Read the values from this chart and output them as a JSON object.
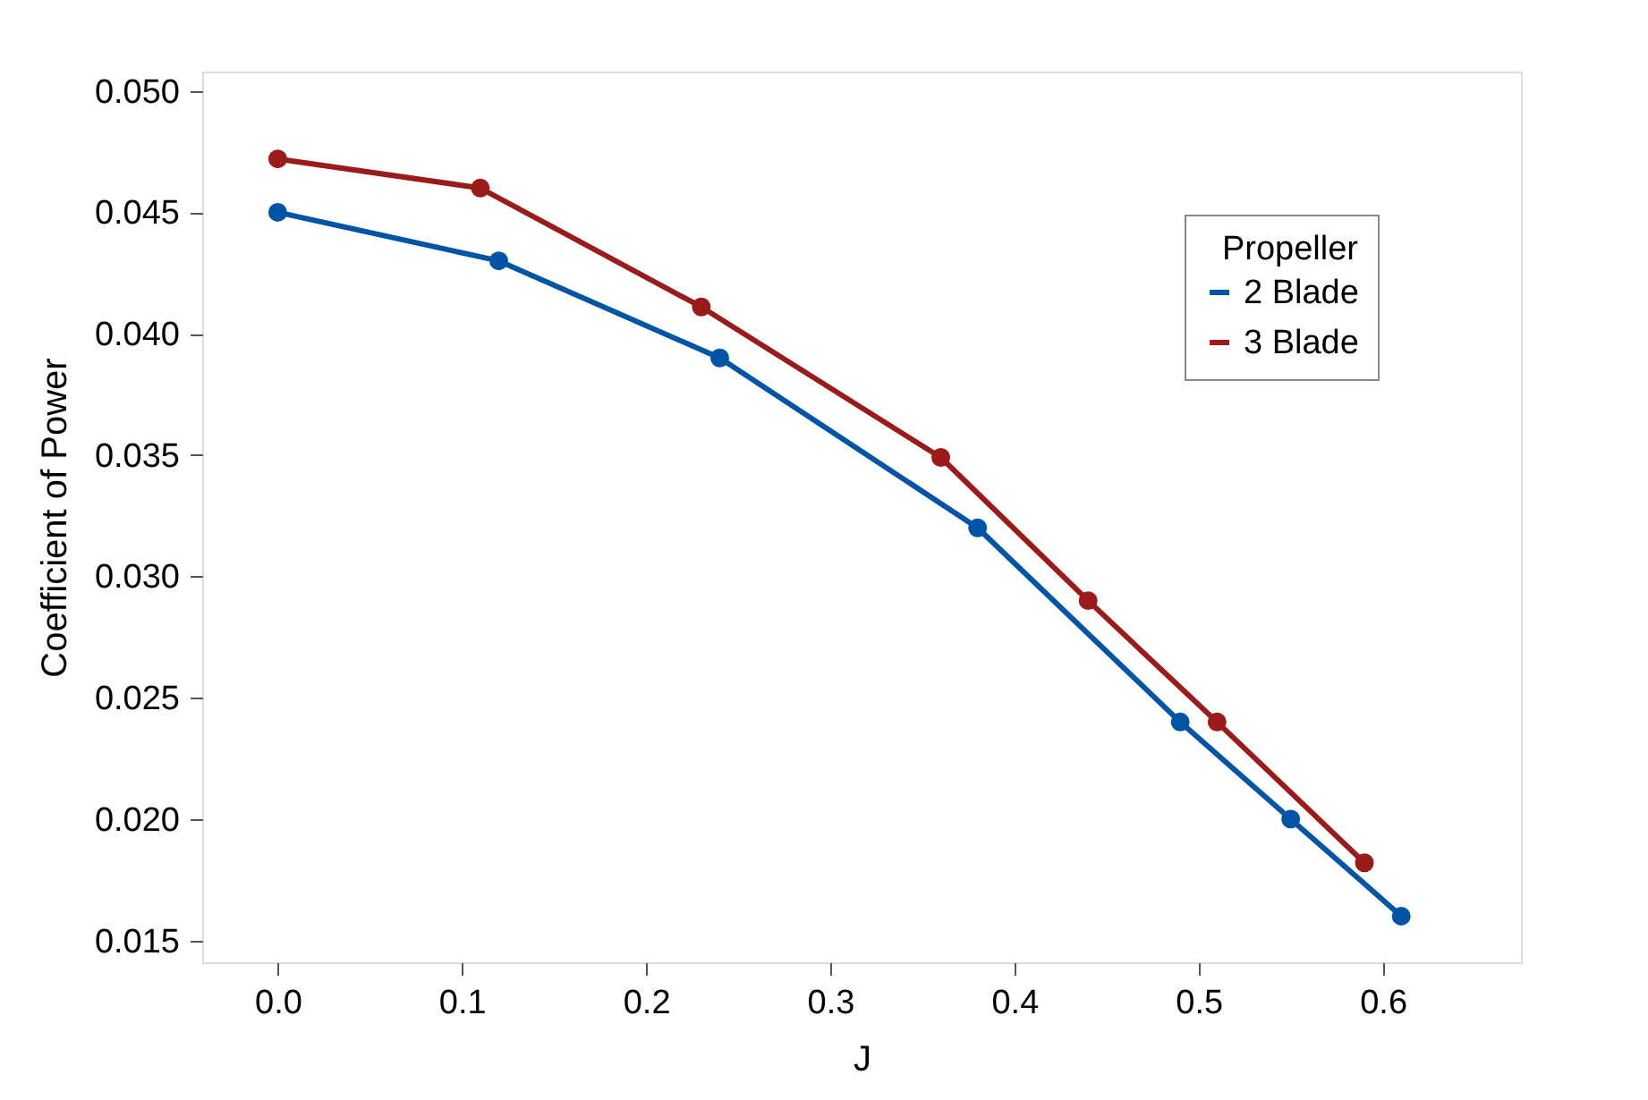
{
  "chart_data": {
    "type": "line",
    "xlabel": "J",
    "ylabel": "Coefficient of Power",
    "legend_title": "Propeller",
    "series": [
      {
        "name": "2 Blade",
        "color": "#0054a6",
        "x": [
          0,
          0.12,
          0.24,
          0.38,
          0.49,
          0.55,
          0.61
        ],
        "values": [
          0.045,
          0.043,
          0.039,
          0.032,
          0.024,
          0.02,
          0.016
        ]
      },
      {
        "name": "3 Blade",
        "color": "#9b1b1b",
        "x": [
          0,
          0.11,
          0.23,
          0.36,
          0.44,
          0.51,
          0.59
        ],
        "values": [
          0.0472,
          0.046,
          0.0411,
          0.0349,
          0.029,
          0.024,
          0.0182
        ]
      }
    ],
    "xlim": [
      -0.041,
      0.675
    ],
    "ylim": [
      0.0141,
      0.0508
    ],
    "xticks": [
      {
        "value": 0,
        "label": "0.0"
      },
      {
        "value": 0.1,
        "label": "0.1"
      },
      {
        "value": 0.2,
        "label": "0.2"
      },
      {
        "value": 0.3,
        "label": "0.3"
      },
      {
        "value": 0.4,
        "label": "0.4"
      },
      {
        "value": 0.5,
        "label": "0.5"
      },
      {
        "value": 0.6,
        "label": "0.6"
      }
    ],
    "yticks": [
      {
        "value": 0.015,
        "label": "0.015"
      },
      {
        "value": 0.02,
        "label": "0.020"
      },
      {
        "value": 0.025,
        "label": "0.025"
      },
      {
        "value": 0.03,
        "label": "0.030"
      },
      {
        "value": 0.035,
        "label": "0.035"
      },
      {
        "value": 0.04,
        "label": "0.040"
      },
      {
        "value": 0.045,
        "label": "0.045"
      },
      {
        "value": 0.05,
        "label": "0.050"
      }
    ],
    "grid": false,
    "legend": "top right",
    "marker": "circle",
    "line_style": "solid"
  }
}
